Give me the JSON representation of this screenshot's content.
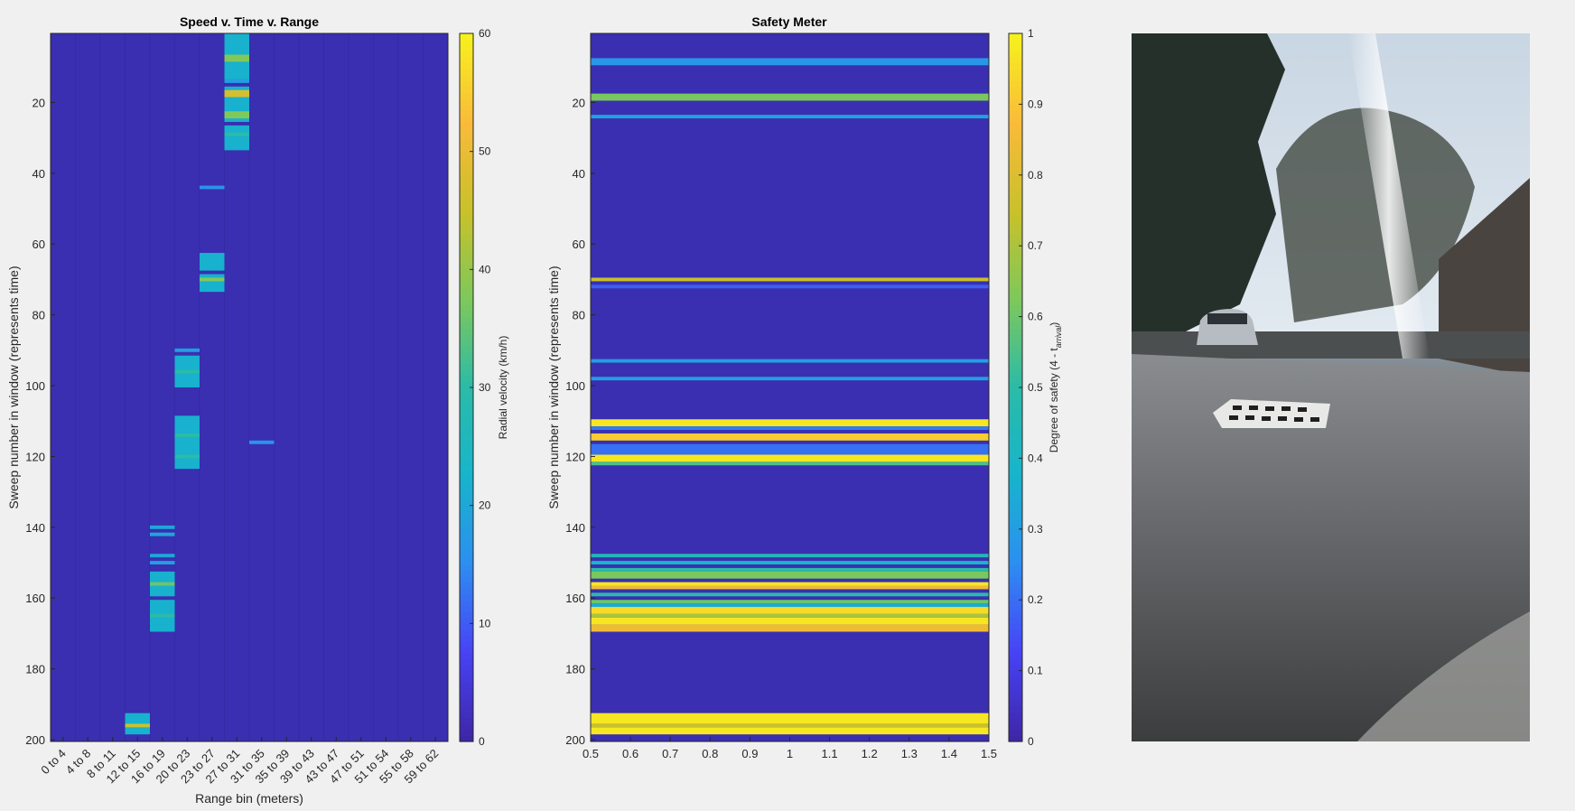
{
  "colors": {
    "background": "#3a2fb0",
    "colormap": [
      "#3e26a8",
      "#4743f6",
      "#2d8ef1",
      "#17b4cc",
      "#2bbba8",
      "#7dc85c",
      "#c8c12a",
      "#f9ba3a",
      "#f7f01e"
    ]
  },
  "chart_data": [
    {
      "type": "heatmap",
      "title": "Speed v. Time v. Range",
      "xlabel": "Range bin (meters)",
      "ylabel": "Sweep number in window (represents time)",
      "colorbar_label": "Radial velocity (km/h)",
      "categories": [
        "0 to 4",
        "4 to 8",
        "8 to 11",
        "12 to 15",
        "16 to 19",
        "20 to 23",
        "23 to 27",
        "27 to 31",
        "31 to 35",
        "35 to 39",
        "39 to 43",
        "43 to 47",
        "47 to 51",
        "51 to 54",
        "55 to 58",
        "59 to 62"
      ],
      "ylim": [
        200,
        1
      ],
      "yticks": [
        20,
        40,
        60,
        80,
        100,
        120,
        140,
        160,
        180,
        200
      ],
      "clim": [
        0,
        60
      ],
      "cticks": [
        0,
        10,
        20,
        30,
        40,
        50,
        60
      ],
      "background_value": 0,
      "cells": [
        {
          "col": 7,
          "sweeps": [
            1,
            13
          ],
          "value": 22
        },
        {
          "col": 7,
          "sweeps": [
            7,
            8
          ],
          "value": 38
        },
        {
          "col": 7,
          "sweeps": [
            14,
            14
          ],
          "value": 18
        },
        {
          "col": 7,
          "sweeps": [
            16,
            25
          ],
          "value": 22
        },
        {
          "col": 7,
          "sweeps": [
            17,
            18
          ],
          "value": 47
        },
        {
          "col": 7,
          "sweeps": [
            23,
            24
          ],
          "value": 38
        },
        {
          "col": 7,
          "sweeps": [
            27,
            33
          ],
          "value": 22
        },
        {
          "col": 7,
          "sweeps": [
            29,
            29
          ],
          "value": 30
        },
        {
          "col": 6,
          "sweeps": [
            44,
            44
          ],
          "value": 16
        },
        {
          "col": 6,
          "sweeps": [
            63,
            67
          ],
          "value": 22
        },
        {
          "col": 6,
          "sweeps": [
            69,
            73
          ],
          "value": 22
        },
        {
          "col": 6,
          "sweeps": [
            70,
            70
          ],
          "value": 38
        },
        {
          "col": 5,
          "sweeps": [
            90,
            90
          ],
          "value": 18
        },
        {
          "col": 5,
          "sweeps": [
            92,
            100
          ],
          "value": 22
        },
        {
          "col": 5,
          "sweeps": [
            96,
            96
          ],
          "value": 30
        },
        {
          "col": 5,
          "sweeps": [
            109,
            123
          ],
          "value": 22
        },
        {
          "col": 5,
          "sweeps": [
            114,
            114
          ],
          "value": 30
        },
        {
          "col": 5,
          "sweeps": [
            120,
            120
          ],
          "value": 30
        },
        {
          "col": 8,
          "sweeps": [
            116,
            116
          ],
          "value": 16
        },
        {
          "col": 4,
          "sweeps": [
            140,
            140
          ],
          "value": 20
        },
        {
          "col": 4,
          "sweeps": [
            142,
            142
          ],
          "value": 20
        },
        {
          "col": 4,
          "sweeps": [
            148,
            148
          ],
          "value": 20
        },
        {
          "col": 4,
          "sweeps": [
            150,
            150
          ],
          "value": 18
        },
        {
          "col": 4,
          "sweeps": [
            153,
            159
          ],
          "value": 22
        },
        {
          "col": 4,
          "sweeps": [
            156,
            156
          ],
          "value": 36
        },
        {
          "col": 4,
          "sweeps": [
            161,
            169
          ],
          "value": 22
        },
        {
          "col": 4,
          "sweeps": [
            165,
            165
          ],
          "value": 30
        },
        {
          "col": 3,
          "sweeps": [
            193,
            198
          ],
          "value": 22
        },
        {
          "col": 3,
          "sweeps": [
            196,
            196
          ],
          "value": 45
        }
      ]
    },
    {
      "type": "heatmap",
      "title": "Safety Meter",
      "xlabel": "",
      "ylabel": "Sweep number in window  (represents time)",
      "colorbar_label_main": "Degree of safety (4 - t",
      "colorbar_label_sub": "arrival",
      "colorbar_label_end": ")",
      "xlim": [
        0.5,
        1.5
      ],
      "xticks": [
        "0.5",
        "0.6",
        "0.7",
        "0.8",
        "0.9",
        "1",
        "1.1",
        "1.2",
        "1.3",
        "1.4",
        "1.5"
      ],
      "ylim": [
        200,
        1
      ],
      "yticks": [
        20,
        40,
        60,
        80,
        100,
        120,
        140,
        160,
        180,
        200
      ],
      "clim": [
        0,
        1
      ],
      "cticks": [
        "0",
        "0.1",
        "0.2",
        "0.3",
        "0.4",
        "0.5",
        "0.6",
        "0.7",
        "0.8",
        "0.9",
        "1"
      ],
      "background_value": 0,
      "bands": [
        {
          "sweeps": [
            8,
            9
          ],
          "value": 0.28
        },
        {
          "sweeps": [
            18,
            19
          ],
          "value": 0.62
        },
        {
          "sweeps": [
            24,
            24
          ],
          "value": 0.32
        },
        {
          "sweeps": [
            70,
            70
          ],
          "value": 0.75
        },
        {
          "sweeps": [
            72,
            72
          ],
          "value": 0.17
        },
        {
          "sweeps": [
            93,
            93
          ],
          "value": 0.3
        },
        {
          "sweeps": [
            98,
            98
          ],
          "value": 0.3
        },
        {
          "sweeps": [
            110,
            111
          ],
          "value": 0.98
        },
        {
          "sweeps": [
            112,
            112
          ],
          "value": 0.22
        },
        {
          "sweeps": [
            114,
            115
          ],
          "value": 0.92
        },
        {
          "sweeps": [
            117,
            119
          ],
          "value": 0.2
        },
        {
          "sweeps": [
            120,
            121
          ],
          "value": 0.98
        },
        {
          "sweeps": [
            122,
            122
          ],
          "value": 0.55
        },
        {
          "sweeps": [
            148,
            148
          ],
          "value": 0.45
        },
        {
          "sweeps": [
            150,
            150
          ],
          "value": 0.38
        },
        {
          "sweeps": [
            152,
            152
          ],
          "value": 0.5
        },
        {
          "sweeps": [
            153,
            154
          ],
          "value": 0.62
        },
        {
          "sweeps": [
            156,
            156
          ],
          "value": 0.98
        },
        {
          "sweeps": [
            157,
            157
          ],
          "value": 0.85
        },
        {
          "sweeps": [
            159,
            159
          ],
          "value": 0.5
        },
        {
          "sweeps": [
            161,
            161
          ],
          "value": 0.6
        },
        {
          "sweeps": [
            162,
            162
          ],
          "value": 0.35
        },
        {
          "sweeps": [
            163,
            164
          ],
          "value": 0.95
        },
        {
          "sweeps": [
            165,
            165
          ],
          "value": 0.7
        },
        {
          "sweeps": [
            166,
            167
          ],
          "value": 0.98
        },
        {
          "sweeps": [
            168,
            169
          ],
          "value": 0.85
        },
        {
          "sweeps": [
            193,
            195
          ],
          "value": 0.98
        },
        {
          "sweeps": [
            196,
            196
          ],
          "value": 0.75
        },
        {
          "sweeps": [
            197,
            198
          ],
          "value": 0.98
        }
      ]
    }
  ],
  "photo": {
    "description_icon": "street-camera-photo"
  }
}
